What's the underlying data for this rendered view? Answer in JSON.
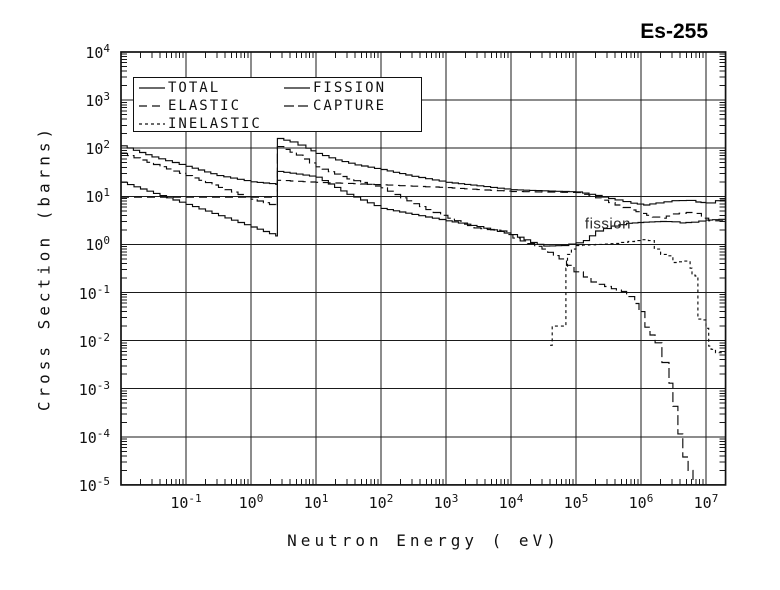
{
  "window": {
    "title": "Es-255"
  },
  "chart_data": {
    "type": "line",
    "title": "Es-255",
    "xlabel": "Neutron Energy ( eV)",
    "ylabel": "Cross Section (barns)",
    "x_scale": "log",
    "y_scale": "log",
    "xlim": [
      0.01,
      20000000.0
    ],
    "ylim": [
      1e-05,
      10000.0
    ],
    "grid": true,
    "x_tick_exponents": [
      -1,
      0,
      1,
      2,
      3,
      4,
      5,
      6,
      7
    ],
    "y_tick_exponents": [
      4,
      3,
      2,
      1,
      0,
      -1,
      -2,
      -3,
      -4,
      -5
    ],
    "annotation": {
      "text": "fission",
      "x": 310000,
      "y": 2.7
    },
    "legend": {
      "position": "top-left",
      "entries": [
        {
          "label": "TOTAL",
          "dash": ""
        },
        {
          "label": "ELASTIC",
          "dash": "8,5"
        },
        {
          "label": "INELASTIC",
          "dash": "3,3"
        },
        {
          "label": "FISSION",
          "dash": ""
        },
        {
          "label": "CAPTURE",
          "dash": "10,4"
        }
      ]
    },
    "series": [
      {
        "name": "TOTAL",
        "dash": "",
        "points": [
          [
            0.01,
            112
          ],
          [
            0.03,
            66
          ],
          [
            0.1,
            42
          ],
          [
            0.3,
            27
          ],
          [
            1,
            20
          ],
          [
            2.4,
            17.8
          ],
          [
            2.55,
            159
          ],
          [
            4,
            135
          ],
          [
            7,
            100
          ],
          [
            10,
            78
          ],
          [
            20,
            57
          ],
          [
            40,
            45
          ],
          [
            100,
            36
          ],
          [
            300,
            26
          ],
          [
            1000,
            19.5
          ],
          [
            3000,
            16.5
          ],
          [
            10000.0,
            13.7
          ],
          [
            30000.0,
            13.0
          ],
          [
            100000.0,
            12.3
          ],
          [
            200000.0,
            10.4
          ],
          [
            400000.0,
            8.4
          ],
          [
            700000.0,
            7.2
          ],
          [
            1100000.0,
            6.6
          ],
          [
            1700000.0,
            7.3
          ],
          [
            3000000.0,
            8.1
          ],
          [
            5000000.0,
            8.2
          ],
          [
            7000000.0,
            7.6
          ],
          [
            10000000.0,
            7.3
          ],
          [
            14000000.0,
            8.1
          ],
          [
            20000000.0,
            8.6
          ]
        ]
      },
      {
        "name": "ELASTIC",
        "dash": "8,5",
        "points": [
          [
            0.01,
            9.6
          ],
          [
            2.4,
            9.6
          ],
          [
            2.55,
            21.5
          ],
          [
            10,
            19.5
          ],
          [
            30,
            18.5
          ],
          [
            100,
            17.3
          ],
          [
            300,
            16.2
          ],
          [
            1000,
            15.2
          ],
          [
            3000,
            13.8
          ],
          [
            10000.0,
            12.6
          ],
          [
            30000.0,
            12.3
          ],
          [
            100000.0,
            12.0
          ],
          [
            200000.0,
            9.3
          ],
          [
            400000.0,
            6.6
          ],
          [
            700000.0,
            5.2
          ],
          [
            1000000.0,
            4.4
          ],
          [
            1500000.0,
            3.7
          ],
          [
            2000000.0,
            3.5
          ],
          [
            3000000.0,
            4.3
          ],
          [
            5000000.0,
            4.6
          ],
          [
            7000000.0,
            4.4
          ],
          [
            8500000.0,
            3.5
          ],
          [
            11000000.0,
            3.1
          ],
          [
            20000000.0,
            3.1
          ]
        ]
      },
      {
        "name": "INELASTIC",
        "dash": "3,3",
        "points": [
          [
            40000.0,
            0.008
          ],
          [
            43000.0,
            0.02
          ],
          [
            68000.0,
            0.02
          ],
          [
            70000.0,
            0.32
          ],
          [
            74000.0,
            0.62
          ],
          [
            85000.0,
            0.8
          ],
          [
            100000.0,
            0.95
          ],
          [
            200000.0,
            1.0
          ],
          [
            400000.0,
            1.05
          ],
          [
            630000.0,
            1.15
          ],
          [
            1000000.0,
            1.25
          ],
          [
            1300000.0,
            1.2
          ],
          [
            1600000.0,
            0.8
          ],
          [
            2000000.0,
            0.62
          ],
          [
            2600000.0,
            0.58
          ],
          [
            3100000.0,
            0.42
          ],
          [
            4400000.0,
            0.45
          ],
          [
            5700000.0,
            0.32
          ],
          [
            6100000.0,
            0.23
          ],
          [
            6800000.0,
            0.22
          ],
          [
            7500000.0,
            0.028
          ],
          [
            9300000.0,
            0.027
          ],
          [
            10000000.0,
            0.018
          ],
          [
            11000000.0,
            0.0077
          ],
          [
            12000000.0,
            0.0066
          ],
          [
            14000000.0,
            0.0056
          ],
          [
            20000000.0,
            0.0056
          ]
        ]
      },
      {
        "name": "FISSION",
        "dash": "",
        "points": [
          [
            0.01,
            19.5
          ],
          [
            0.1,
            6.8
          ],
          [
            1,
            2.3
          ],
          [
            2.4,
            1.5
          ],
          [
            2.55,
            33
          ],
          [
            5,
            29
          ],
          [
            10,
            25
          ],
          [
            30,
            11
          ],
          [
            100,
            5.6
          ],
          [
            300,
            4.2
          ],
          [
            1000,
            3.1
          ],
          [
            3000,
            2.35
          ],
          [
            10000.0,
            1.6
          ],
          [
            20000.0,
            1.1
          ],
          [
            32000.0,
            0.92
          ],
          [
            60000.0,
            0.95
          ],
          [
            100000.0,
            1.08
          ],
          [
            130000.0,
            1.2
          ],
          [
            200000.0,
            1.9
          ],
          [
            350000.0,
            2.4
          ],
          [
            600000.0,
            2.75
          ],
          [
            1100000.0,
            2.9
          ],
          [
            2000000.0,
            3.0
          ],
          [
            3000000.0,
            2.95
          ],
          [
            4000000.0,
            2.8
          ],
          [
            6000000.0,
            2.9
          ],
          [
            10000000.0,
            3.2
          ],
          [
            20000000.0,
            3.4
          ]
        ]
      },
      {
        "name": "CAPTURE",
        "dash": "10,4",
        "points": [
          [
            0.01,
            78
          ],
          [
            0.1,
            27
          ],
          [
            1,
            8.7
          ],
          [
            2.4,
            6.2
          ],
          [
            2.55,
            108
          ],
          [
            5,
            72
          ],
          [
            10,
            41
          ],
          [
            30,
            23
          ],
          [
            100,
            15
          ],
          [
            200,
            9.3
          ],
          [
            490,
            5.3
          ],
          [
            1070,
            3.5
          ],
          [
            2700,
            2.2
          ],
          [
            7000,
            1.9
          ],
          [
            10700.0,
            1.35
          ],
          [
            30000.0,
            0.8
          ],
          [
            55000.0,
            0.5
          ],
          [
            93000.0,
            0.27
          ],
          [
            130000.0,
            0.21
          ],
          [
            170000.0,
            0.165
          ],
          [
            350000.0,
            0.12
          ],
          [
            500000.0,
            0.105
          ],
          [
            600000.0,
            0.082
          ],
          [
            800000.0,
            0.059
          ],
          [
            930000.0,
            0.04
          ],
          [
            1150000.0,
            0.019
          ],
          [
            1650000.0,
            0.009
          ],
          [
            2100000.0,
            0.0035
          ],
          [
            2700000.0,
            0.0013
          ],
          [
            3100000.0,
            0.00043
          ],
          [
            3700000.0,
            0.000115
          ],
          [
            4400000.0,
            3.8e-05
          ],
          [
            5300000.0,
            2e-05
          ],
          [
            6300000.0,
            1.1e-05
          ]
        ]
      }
    ]
  }
}
